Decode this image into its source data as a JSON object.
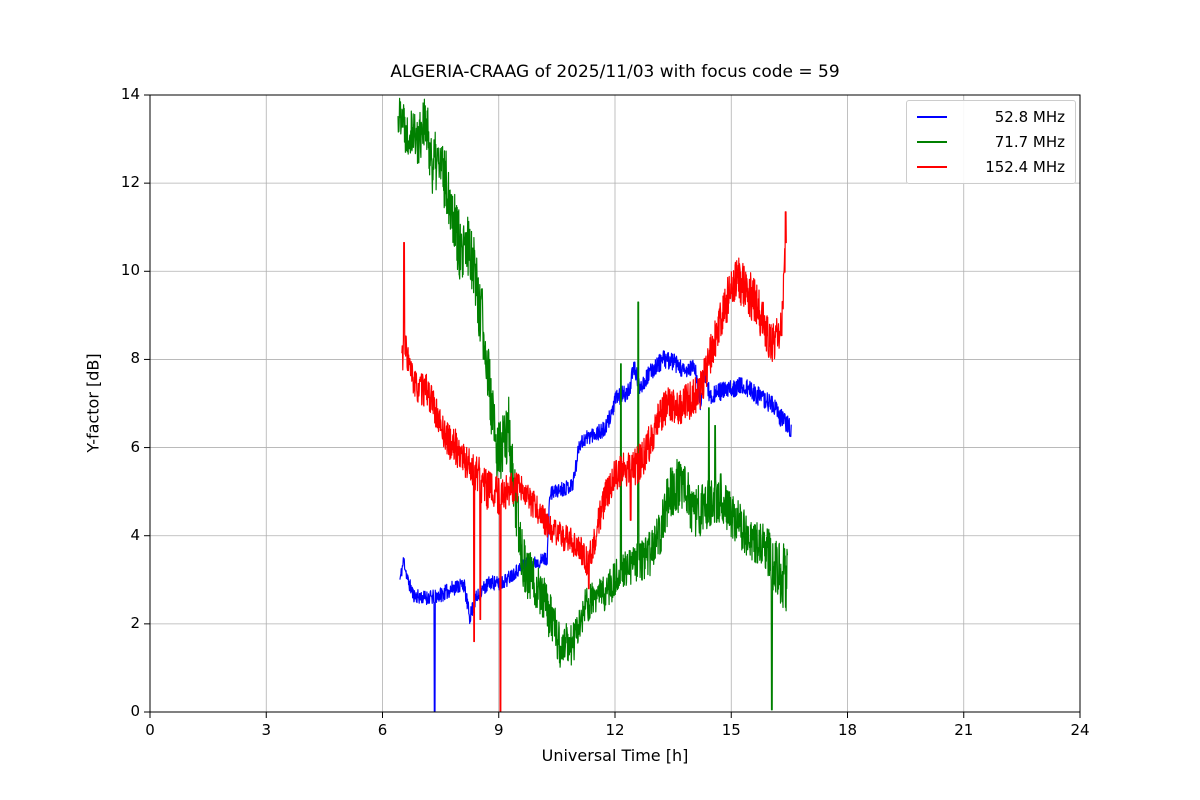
{
  "chart_data": {
    "type": "line",
    "title": "ALGERIA-CRAAG of 2025/11/03 with focus code = 59",
    "xlabel": "Universal Time [h]",
    "ylabel": "Y-factor [dB]",
    "xlim": [
      0,
      24
    ],
    "ylim": [
      0,
      14
    ],
    "x_ticks": [
      0,
      3,
      6,
      9,
      12,
      15,
      18,
      21,
      24
    ],
    "y_ticks": [
      0,
      2,
      4,
      6,
      8,
      10,
      12,
      14
    ],
    "grid": true,
    "grid_color": "#b0b0b0",
    "legend_position": "upper right",
    "series": [
      {
        "name": "52.8 MHz",
        "color": "#0000ff",
        "seed": 11,
        "anchors_t": [
          6.45,
          6.55,
          6.65,
          6.8,
          7.0,
          7.3,
          7.6,
          7.9,
          8.1,
          8.25,
          8.4,
          8.6,
          8.8,
          9.0,
          9.2,
          9.45,
          9.7,
          10.0,
          10.25,
          10.32,
          10.6,
          10.9,
          11.0,
          11.08,
          11.4,
          11.75,
          11.95,
          12.05,
          12.35,
          12.5,
          12.62,
          12.75,
          13.0,
          13.25,
          13.5,
          13.8,
          14.05,
          14.2,
          14.32,
          14.45,
          14.6,
          14.9,
          15.2,
          15.5,
          15.8,
          16.05,
          16.25,
          16.45,
          16.55
        ],
        "anchors_v": [
          3.0,
          3.45,
          3.0,
          2.65,
          2.6,
          2.6,
          2.7,
          2.85,
          2.9,
          2.15,
          2.55,
          2.8,
          2.95,
          2.9,
          3.0,
          3.2,
          3.35,
          3.4,
          3.5,
          4.95,
          5.05,
          5.15,
          5.6,
          6.1,
          6.3,
          6.4,
          6.9,
          7.15,
          7.25,
          7.85,
          7.4,
          7.5,
          7.8,
          8.0,
          7.95,
          7.7,
          7.85,
          7.0,
          7.75,
          7.15,
          7.25,
          7.3,
          7.4,
          7.3,
          7.1,
          7.0,
          6.7,
          6.55,
          6.4
        ],
        "noise_t": [
          6.45,
          8.0,
          10.0,
          12.0,
          14.0,
          16.55
        ],
        "noise_a": [
          0.15,
          0.18,
          0.15,
          0.2,
          0.2,
          0.22
        ],
        "spikes": [
          [
            7.35,
            0.02
          ]
        ]
      },
      {
        "name": "71.7 MHz",
        "color": "#008000",
        "seed": 22,
        "anchors_t": [
          6.4,
          6.5,
          6.62,
          6.75,
          6.9,
          7.05,
          7.18,
          7.3,
          7.45,
          7.6,
          7.75,
          7.9,
          8.05,
          8.2,
          8.35,
          8.5,
          8.65,
          8.8,
          8.95,
          9.1,
          9.25,
          9.4,
          9.55,
          9.7,
          9.85,
          10.0,
          10.15,
          10.3,
          10.45,
          10.6,
          10.75,
          10.9,
          11.05,
          11.25,
          11.5,
          11.75,
          12.0,
          12.2,
          12.4,
          12.6,
          12.8,
          13.0,
          13.2,
          13.4,
          13.6,
          13.8,
          14.0,
          14.2,
          14.4,
          14.6,
          14.8,
          15.0,
          15.2,
          15.4,
          15.6,
          15.8,
          16.0,
          16.2,
          16.45
        ],
        "anchors_v": [
          13.4,
          13.7,
          13.1,
          13.3,
          12.9,
          13.4,
          13.0,
          12.4,
          12.5,
          12.1,
          11.7,
          11.0,
          10.2,
          10.6,
          10.3,
          9.2,
          8.3,
          7.0,
          5.9,
          6.0,
          6.5,
          4.9,
          3.9,
          3.2,
          3.0,
          2.9,
          2.6,
          2.2,
          1.9,
          1.4,
          1.6,
          1.5,
          1.9,
          2.4,
          2.6,
          2.7,
          3.0,
          3.2,
          3.3,
          3.4,
          3.5,
          3.7,
          4.2,
          5.0,
          5.2,
          5.0,
          4.6,
          4.5,
          4.8,
          4.9,
          4.8,
          4.5,
          4.3,
          4.0,
          3.8,
          3.7,
          3.5,
          3.3,
          2.9
        ],
        "noise_t": [
          6.4,
          7.5,
          8.5,
          9.5,
          10.5,
          11.5,
          12.5,
          13.5,
          14.5,
          15.5,
          16.45
        ],
        "noise_a": [
          0.5,
          0.75,
          0.8,
          0.7,
          0.5,
          0.4,
          0.45,
          0.65,
          0.6,
          0.5,
          0.8
        ],
        "spikes": [
          [
            8.57,
            9.6
          ],
          [
            12.15,
            7.9
          ],
          [
            12.6,
            9.3
          ],
          [
            14.42,
            6.9
          ],
          [
            14.58,
            6.5
          ],
          [
            16.05,
            0.05
          ]
        ]
      },
      {
        "name": "152.4 MHz",
        "color": "#ff0000",
        "seed": 33,
        "anchors_t": [
          6.5,
          6.6,
          6.72,
          6.85,
          7.0,
          7.15,
          7.3,
          7.45,
          7.6,
          7.75,
          7.9,
          8.05,
          8.2,
          8.35,
          8.5,
          8.65,
          8.8,
          9.0,
          9.2,
          9.4,
          9.6,
          9.8,
          10.0,
          10.2,
          10.4,
          10.6,
          10.8,
          11.0,
          11.15,
          11.3,
          11.45,
          11.6,
          11.8,
          12.0,
          12.2,
          12.4,
          12.6,
          12.8,
          13.0,
          13.2,
          13.4,
          13.6,
          13.8,
          14.0,
          14.2,
          14.4,
          14.6,
          14.8,
          15.0,
          15.2,
          15.4,
          15.6,
          15.8,
          16.0,
          16.15,
          16.3,
          16.42
        ],
        "anchors_v": [
          8.1,
          8.3,
          7.7,
          7.4,
          7.3,
          7.3,
          7.0,
          6.6,
          6.3,
          6.1,
          6.0,
          5.8,
          5.6,
          5.5,
          5.3,
          5.1,
          5.0,
          4.9,
          5.0,
          5.1,
          5.0,
          4.8,
          4.6,
          4.3,
          4.1,
          4.0,
          3.9,
          3.8,
          3.6,
          3.4,
          3.8,
          4.4,
          5.0,
          5.4,
          5.5,
          5.5,
          5.6,
          5.9,
          6.4,
          6.8,
          7.0,
          6.9,
          7.0,
          7.1,
          7.3,
          7.9,
          8.5,
          9.1,
          9.6,
          9.8,
          9.6,
          9.3,
          8.9,
          8.3,
          8.5,
          8.8,
          10.9
        ],
        "noise_t": [
          6.5,
          7.5,
          8.5,
          9.5,
          10.5,
          11.5,
          12.5,
          13.5,
          14.5,
          15.5,
          16.42
        ],
        "noise_a": [
          0.4,
          0.35,
          0.5,
          0.35,
          0.3,
          0.35,
          0.45,
          0.4,
          0.45,
          0.55,
          0.4
        ],
        "spikes": [
          [
            6.56,
            10.65
          ],
          [
            8.36,
            1.6
          ],
          [
            8.52,
            2.1
          ],
          [
            9.04,
            0.02
          ],
          [
            11.32,
            2.8
          ],
          [
            12.4,
            4.35
          ],
          [
            16.4,
            11.35
          ]
        ]
      }
    ]
  }
}
